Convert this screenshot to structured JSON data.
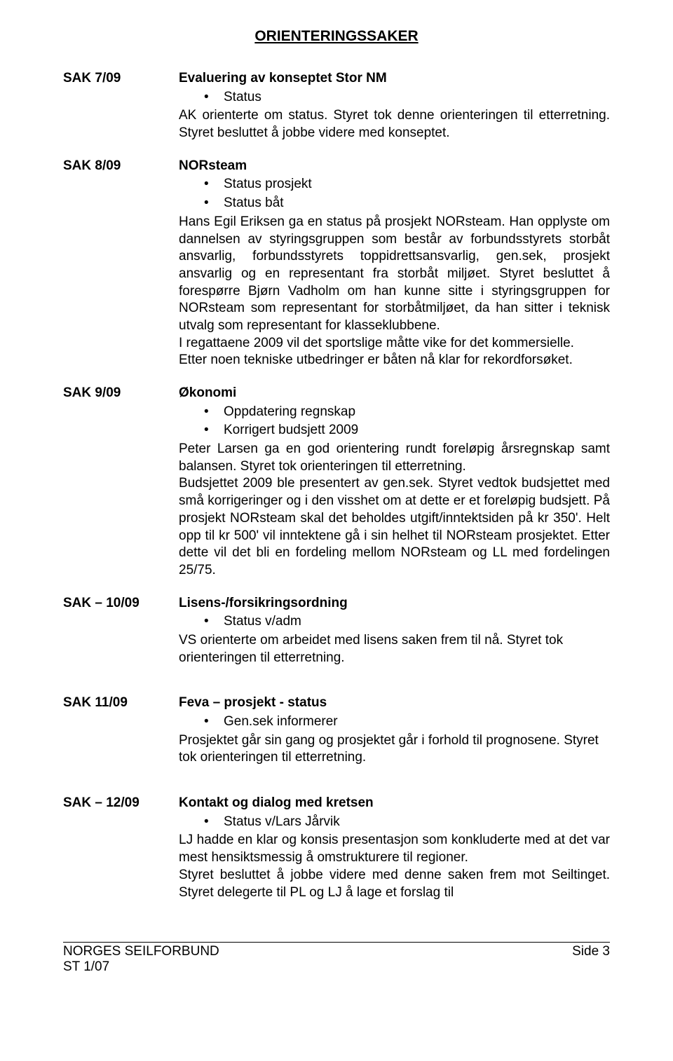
{
  "title": "ORIENTERINGSSAKER",
  "saks": [
    {
      "label": "SAK 7/09",
      "heading": "Evaluering av konseptet Stor NM",
      "bullets": [
        "Status"
      ],
      "paras": [
        "AK orienterte om status. Styret tok denne orienteringen til etterretning. Styret besluttet å jobbe videre med konseptet."
      ]
    },
    {
      "label": "SAK 8/09",
      "heading": "NORsteam",
      "bullets": [
        "Status prosjekt",
        "Status båt"
      ],
      "paras": [
        "Hans Egil Eriksen ga en status på prosjekt NORsteam. Han opplyste om dannelsen av styringsgruppen som består av forbundsstyrets storbåt ansvarlig, forbundsstyrets toppidrettsansvarlig, gen.sek, prosjekt ansvarlig og en representant fra storbåt miljøet. Styret besluttet å forespørre Bjørn Vadholm om han kunne sitte i styringsgruppen for NORsteam som representant for storbåtmiljøet, da han sitter i teknisk utvalg som representant for klasseklubbene.",
        "I regattaene 2009 vil det sportslige måtte vike for det kommersielle.",
        "Etter noen tekniske utbedringer er båten nå klar for rekordforsøket."
      ]
    },
    {
      "label": "SAK 9/09",
      "heading": "Økonomi",
      "bullets": [
        "Oppdatering regnskap",
        "Korrigert budsjett 2009"
      ],
      "paras": [
        "Peter Larsen ga en god orientering rundt foreløpig årsregnskap samt balansen. Styret tok orienteringen til etterretning.",
        "Budsjettet 2009 ble presentert av gen.sek. Styret vedtok budsjettet med små korrigeringer og i den visshet om at dette er et foreløpig budsjett. På prosjekt NORsteam skal det beholdes utgift/inntektsiden på kr 350'. Helt opp til kr 500' vil inntektene gå i sin helhet til NORsteam prosjektet. Etter dette vil det bli en fordeling mellom NORsteam og LL med fordelingen 25/75."
      ]
    },
    {
      "label": "SAK  – 10/09",
      "groups": [
        {
          "heading": "Lisens-/forsikringsordning",
          "bullets": [
            "Status v/adm"
          ],
          "paras": [
            "VS orienterte om arbeidet med lisens saken frem til nå. Styret tok orienteringen til etterretning."
          ]
        }
      ]
    },
    {
      "label": "SAK 11/09",
      "groups": [
        {
          "heading": "Feva – prosjekt - status",
          "bullets": [
            "Gen.sek informerer"
          ],
          "paras": [
            "Prosjektet går sin gang og prosjektet går i forhold til prognosene. Styret tok orienteringen til etterretning."
          ]
        }
      ]
    },
    {
      "label": "SAK  – 12/09",
      "groups": [
        {
          "heading": "Kontakt og dialog med kretsen",
          "bullets": [
            "Status v/Lars Jårvik"
          ],
          "paras": [
            "LJ hadde en klar og konsis presentasjon som konkluderte med at det var mest hensiktsmessig å omstrukturere til regioner.",
            "Styret besluttet å jobbe videre med denne saken frem mot Seiltinget. Styret delegerte til PL og LJ å lage et forslag til"
          ],
          "lastParaJustify": true
        }
      ]
    }
  ],
  "footer": {
    "left1": "NORGES SEILFORBUND",
    "left2": "ST 1/07",
    "right": "Side 3"
  }
}
